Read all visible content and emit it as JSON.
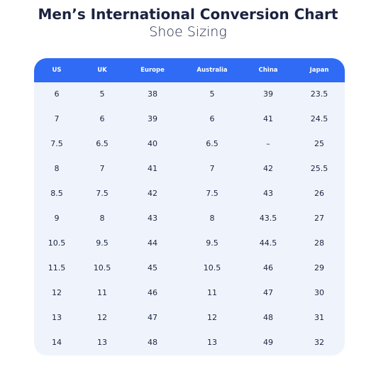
{
  "header": {
    "title": "Men’s International Conversion Chart",
    "subtitle": "Shoe Sizing"
  },
  "table": {
    "columns": [
      "US",
      "UK",
      "Europe",
      "Australia",
      "China",
      "Japan"
    ],
    "rows": [
      [
        "6",
        "5",
        "38",
        "5",
        "39",
        "23.5"
      ],
      [
        "7",
        "6",
        "39",
        "6",
        "41",
        "24.5"
      ],
      [
        "7.5",
        "6.5",
        "40",
        "6.5",
        "–",
        "25"
      ],
      [
        "8",
        "7",
        "41",
        "7",
        "42",
        "25.5"
      ],
      [
        "8.5",
        "7.5",
        "42",
        "7.5",
        "43",
        "26"
      ],
      [
        "9",
        "8",
        "43",
        "8",
        "43.5",
        "27"
      ],
      [
        "10.5",
        "9.5",
        "44",
        "9.5",
        "44.5",
        "28"
      ],
      [
        "11.5",
        "10.5",
        "45",
        "10.5",
        "46",
        "29"
      ],
      [
        "12",
        "11",
        "46",
        "11",
        "47",
        "30"
      ],
      [
        "13",
        "12",
        "47",
        "12",
        "48",
        "31"
      ],
      [
        "14",
        "13",
        "48",
        "13",
        "49",
        "32"
      ]
    ]
  }
}
